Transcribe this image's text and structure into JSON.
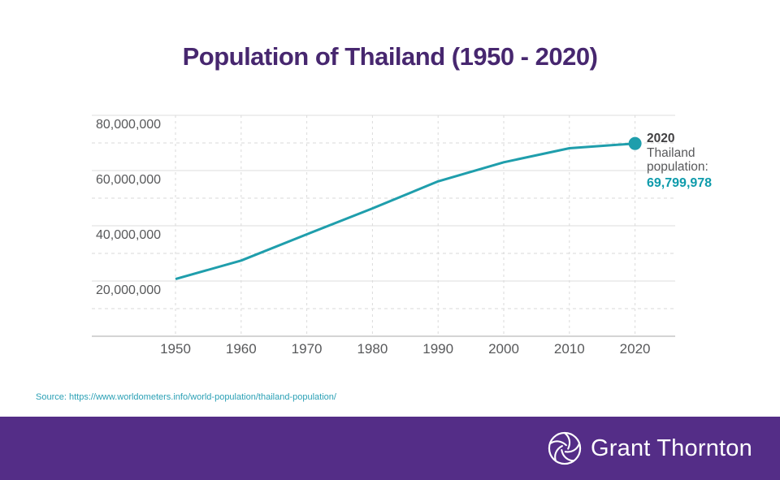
{
  "header": {
    "title": "Population of Thailand (1950 - 2020)"
  },
  "chart_data": {
    "type": "line",
    "title": "Population of Thailand (1950 - 2020)",
    "x": [
      1950,
      1960,
      1970,
      1980,
      1990,
      2000,
      2010,
      2020
    ],
    "series": [
      {
        "name": "Thailand population",
        "values": [
          20700000,
          27400000,
          36900000,
          46300000,
          56100000,
          63000000,
          68100000,
          69799978
        ]
      }
    ],
    "ylim": [
      0,
      80000000
    ],
    "xlabel": "",
    "ylabel": "",
    "legend": "none",
    "grid": "horizontal solid at major ticks, dashed at minor ticks, vertical dashed at each decade",
    "line_color": "#1F9EAC",
    "marker": {
      "year": 2020,
      "value": 69799978,
      "color": "#1F9EAC"
    },
    "y_axis": {
      "major_ticks": [
        {
          "value": 80000000,
          "label": "80,000,000"
        },
        {
          "value": 60000000,
          "label": "60,000,000"
        },
        {
          "value": 40000000,
          "label": "40,000,000"
        },
        {
          "value": 20000000,
          "label": "20,000,000"
        }
      ],
      "minor_gridlines": [
        70000000,
        50000000,
        30000000,
        10000000
      ]
    },
    "x_axis": {
      "ticks": [
        {
          "value": 1950,
          "label": "1950"
        },
        {
          "value": 1960,
          "label": "1960"
        },
        {
          "value": 1970,
          "label": "1970"
        },
        {
          "value": 1980,
          "label": "1980"
        },
        {
          "value": 1990,
          "label": "1990"
        },
        {
          "value": 2000,
          "label": "2000"
        },
        {
          "value": 2010,
          "label": "2010"
        },
        {
          "value": 2020,
          "label": "2020"
        }
      ]
    }
  },
  "annotation": {
    "year": "2020",
    "line1": "Thailand",
    "line2": "population:",
    "value": "69,799,978"
  },
  "source": {
    "text": "Source: https://www.worldometers.info/world-population/thailand-population/"
  },
  "footer": {
    "brand": "Grant Thornton",
    "logo_icon": "grant-thornton-swirl-icon"
  },
  "colors": {
    "title_purple": "#47276F",
    "footer_purple": "#542D87",
    "line_teal": "#1F9EAC",
    "value_teal": "#0F9BAB",
    "source_teal": "#2BA0B5",
    "tick_gray": "#58595B",
    "grid_major": "#DCDCDC",
    "grid_minor": "#DADADA",
    "axis_line": "#C6C6C6"
  }
}
